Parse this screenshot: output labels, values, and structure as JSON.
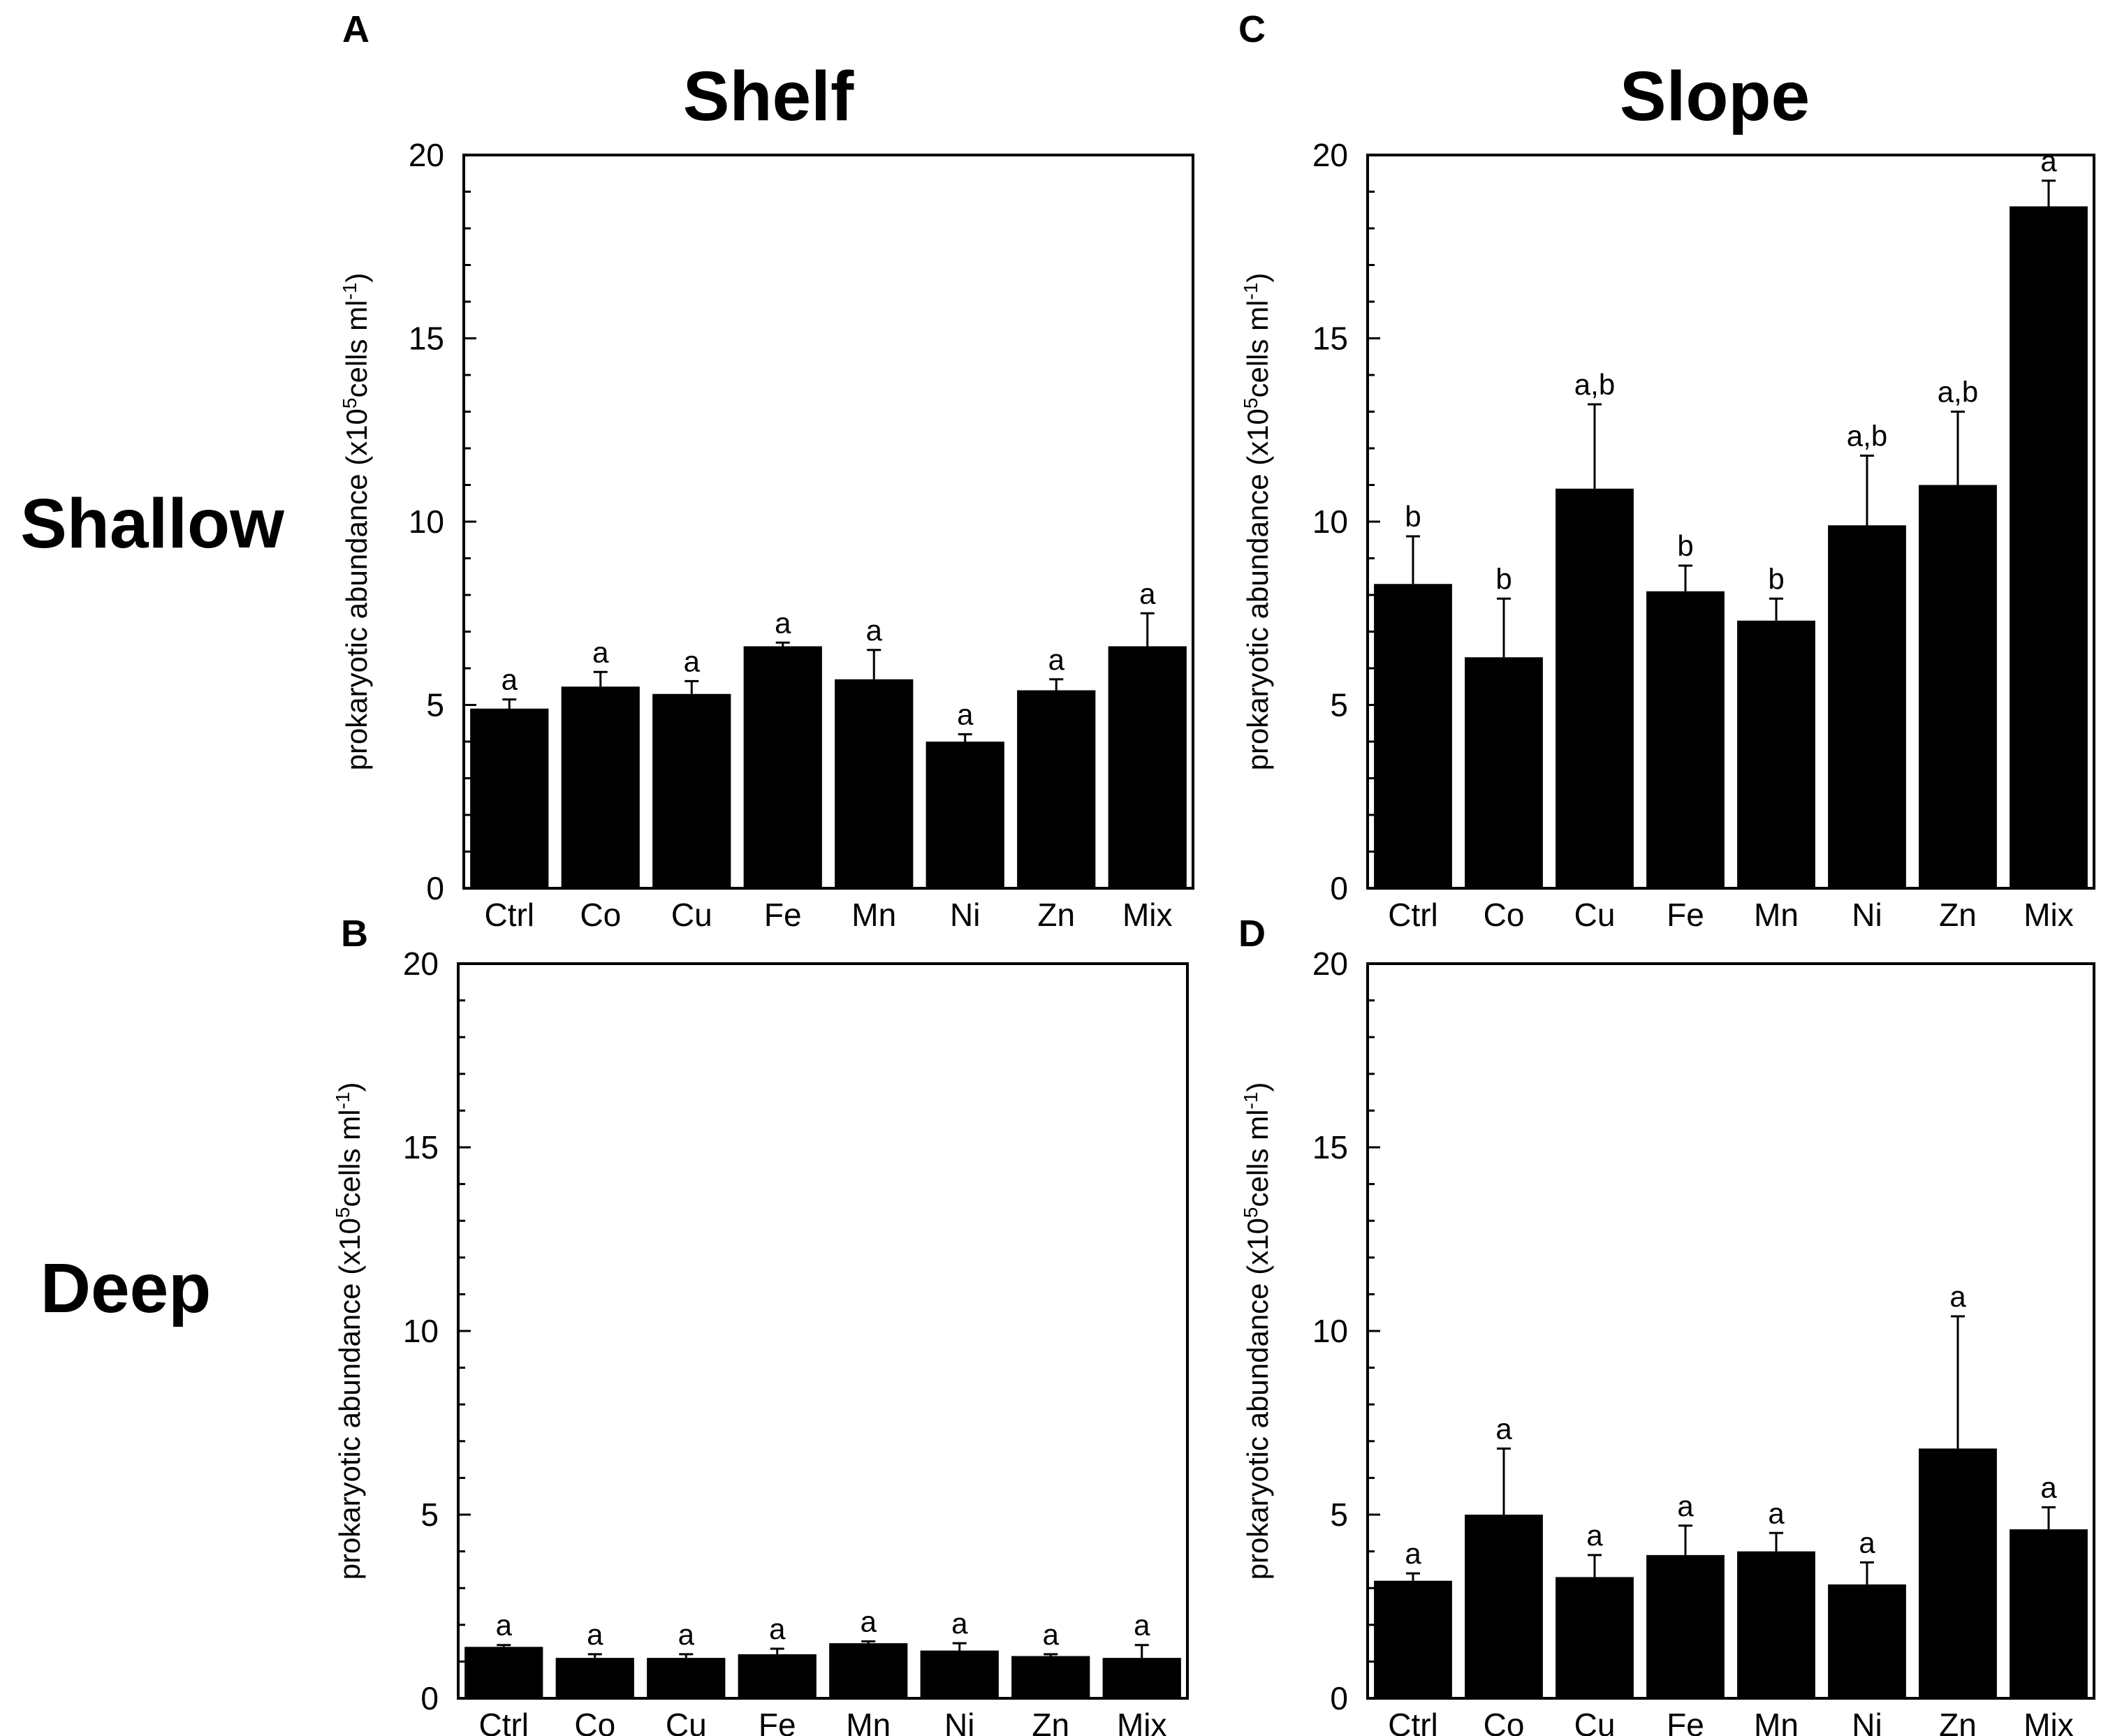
{
  "figure": {
    "column_titles": [
      "Shelf",
      "Slope"
    ],
    "row_titles": [
      "Shallow",
      "Deep"
    ]
  },
  "chart_data": [
    {
      "panel": "A",
      "type": "bar",
      "location": "Shelf",
      "depth": "Shallow",
      "categories": [
        "Ctrl",
        "Co",
        "Cu",
        "Fe",
        "Mn",
        "Ni",
        "Zn",
        "Mix"
      ],
      "values": [
        4.9,
        5.5,
        5.3,
        6.6,
        5.7,
        4.0,
        5.4,
        6.6
      ],
      "errors": [
        0.25,
        0.4,
        0.35,
        0.1,
        0.8,
        0.2,
        0.3,
        0.9
      ],
      "significance": [
        "a",
        "a",
        "a",
        "a",
        "a",
        "a",
        "a",
        "a"
      ],
      "ylabel_main": "prokaryotic abundance (x10",
      "ylabel_sup5": "5",
      "ylabel_mid": "cells ml",
      "ylabel_supneg": "-1",
      "ylabel_end": ")",
      "ylim": [
        0,
        20
      ],
      "yticks": [
        "0",
        "5",
        "10",
        "15",
        "20"
      ]
    },
    {
      "panel": "B",
      "type": "bar",
      "location": "Shelf",
      "depth": "Deep",
      "categories": [
        "Ctrl",
        "Co",
        "Cu",
        "Fe",
        "Mn",
        "Ni",
        "Zn",
        "Mix"
      ],
      "values": [
        1.4,
        1.1,
        1.1,
        1.2,
        1.5,
        1.3,
        1.15,
        1.1
      ],
      "errors": [
        0.05,
        0.1,
        0.1,
        0.15,
        0.05,
        0.2,
        0.05,
        0.35
      ],
      "significance": [
        "a",
        "a",
        "a",
        "a",
        "a",
        "a",
        "a",
        "a"
      ],
      "ylabel_main": "prokaryotic abundance (x10",
      "ylabel_sup5": "5",
      "ylabel_mid": "cells ml",
      "ylabel_supneg": "-1",
      "ylabel_end": ")",
      "ylim": [
        0,
        20
      ],
      "yticks": [
        "0",
        "5",
        "10",
        "15",
        "20"
      ]
    },
    {
      "panel": "C",
      "type": "bar",
      "location": "Slope",
      "depth": "Shallow",
      "categories": [
        "Ctrl",
        "Co",
        "Cu",
        "Fe",
        "Mn",
        "Ni",
        "Zn",
        "Mix"
      ],
      "values": [
        8.3,
        6.3,
        10.9,
        8.1,
        7.3,
        9.9,
        11.0,
        18.6
      ],
      "errors": [
        1.3,
        1.6,
        2.3,
        0.7,
        0.6,
        1.9,
        2.0,
        0.7
      ],
      "significance": [
        "b",
        "b",
        "a,b",
        "b",
        "b",
        "a,b",
        "a,b",
        "a"
      ],
      "ylabel_main": "prokaryotic abundance (x10",
      "ylabel_sup5": "5",
      "ylabel_mid": "cells ml",
      "ylabel_supneg": "-1",
      "ylabel_end": ")",
      "ylim": [
        0,
        20
      ],
      "yticks": [
        "0",
        "5",
        "10",
        "15",
        "20"
      ]
    },
    {
      "panel": "D",
      "type": "bar",
      "location": "Slope",
      "depth": "Deep",
      "categories": [
        "Ctrl",
        "Co",
        "Cu",
        "Fe",
        "Mn",
        "Ni",
        "Zn",
        "Mix"
      ],
      "values": [
        3.2,
        5.0,
        3.3,
        3.9,
        4.0,
        3.1,
        6.8,
        4.6
      ],
      "errors": [
        0.2,
        1.8,
        0.6,
        0.8,
        0.5,
        0.6,
        3.6,
        0.6
      ],
      "significance": [
        "a",
        "a",
        "a",
        "a",
        "a",
        "a",
        "a",
        "a"
      ],
      "ylabel_main": "prokaryotic abundance (x10",
      "ylabel_sup5": "5",
      "ylabel_mid": "cells ml",
      "ylabel_supneg": "-1",
      "ylabel_end": ")",
      "ylim": [
        0,
        20
      ],
      "yticks": [
        "0",
        "5",
        "10",
        "15",
        "20"
      ]
    }
  ]
}
